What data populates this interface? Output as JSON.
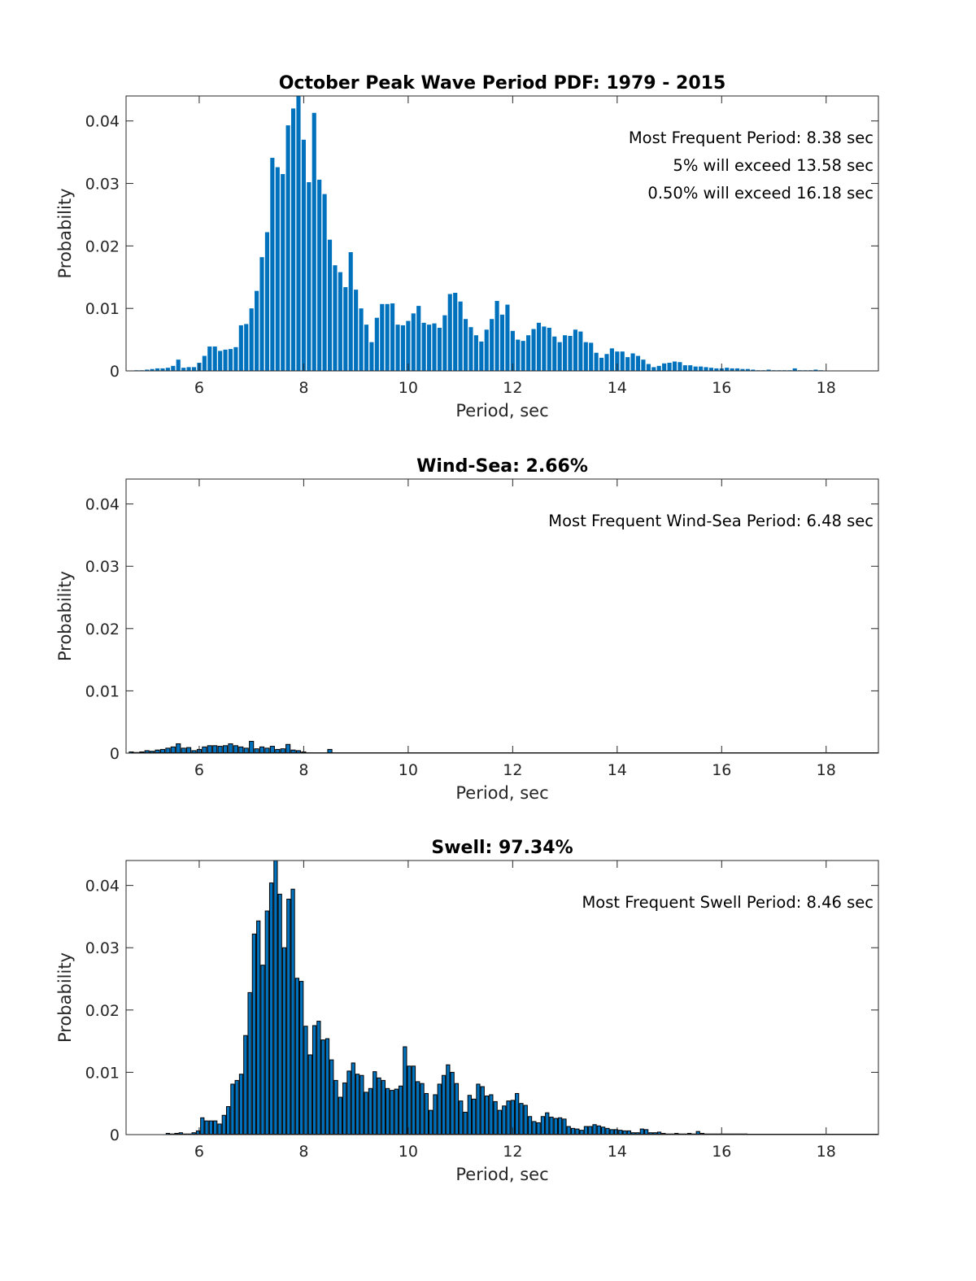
{
  "colors": {
    "bar": "#0072BD",
    "bar_edge": "#000000",
    "axis": "#262626",
    "background": "#ffffff"
  },
  "chart_data": [
    {
      "type": "bar",
      "title": "October Peak Wave Period PDF: 1979 - 2015",
      "xlabel": "Period, sec",
      "ylabel": "Probability",
      "xlim": [
        4.6,
        19.0
      ],
      "ylim": [
        0,
        0.044
      ],
      "xticks": [
        6,
        8,
        10,
        12,
        14,
        16,
        18
      ],
      "xtick_labels": [
        "6",
        "8",
        "10",
        "12",
        "14",
        "16",
        "18"
      ],
      "yticks": [
        0,
        0.01,
        0.02,
        0.03,
        0.04
      ],
      "ytick_labels": [
        "0",
        "0.01",
        "0.02",
        "0.03",
        "0.04"
      ],
      "bar_edge": false,
      "bin_start": 4.8,
      "bin_width": 0.1,
      "values": [
        0.0001,
        0.0001,
        0.0002,
        0.0003,
        0.0004,
        0.0004,
        0.0005,
        0.0008,
        0.0018,
        0.0005,
        0.0006,
        0.0006,
        0.0013,
        0.0024,
        0.0039,
        0.0039,
        0.0032,
        0.0034,
        0.0035,
        0.0038,
        0.0073,
        0.0075,
        0.01,
        0.0128,
        0.0182,
        0.0222,
        0.0341,
        0.0326,
        0.0315,
        0.0393,
        0.042,
        0.0445,
        0.037,
        0.0302,
        0.0413,
        0.0306,
        0.0283,
        0.021,
        0.0169,
        0.0158,
        0.0134,
        0.019,
        0.013,
        0.01,
        0.0074,
        0.0046,
        0.0085,
        0.0107,
        0.0107,
        0.0108,
        0.0074,
        0.0073,
        0.008,
        0.0092,
        0.0104,
        0.0077,
        0.0074,
        0.0076,
        0.0069,
        0.0089,
        0.0123,
        0.0125,
        0.0111,
        0.0083,
        0.007,
        0.0057,
        0.0047,
        0.0066,
        0.0083,
        0.0112,
        0.009,
        0.0106,
        0.0064,
        0.005,
        0.0048,
        0.0057,
        0.0067,
        0.0077,
        0.0071,
        0.0069,
        0.0055,
        0.0046,
        0.0057,
        0.0056,
        0.0066,
        0.0063,
        0.0046,
        0.0045,
        0.0029,
        0.0021,
        0.0027,
        0.0036,
        0.0031,
        0.0031,
        0.0022,
        0.0028,
        0.0024,
        0.0018,
        0.0011,
        0.0006,
        0.0008,
        0.0012,
        0.0013,
        0.0015,
        0.0014,
        0.0009,
        0.0009,
        0.0007,
        0.0007,
        0.0006,
        0.0005,
        0.0004,
        0.0004,
        0.0005,
        0.0004,
        0.0004,
        0.0003,
        0.0003,
        0.0002,
        0.0001,
        0.0001,
        0.0002,
        0.0001,
        0.0001,
        0.0001,
        0.0001,
        0.0004,
        0.0001,
        0.0001,
        0.0001,
        0.0002,
        0.0001
      ],
      "annotations": [
        "Most Frequent Period: 8.38 sec",
        "5% will exceed 13.58 sec",
        "0.50% will exceed 16.18 sec"
      ]
    },
    {
      "type": "bar",
      "title": "Wind-Sea: 2.66%",
      "xlabel": "Period, sec",
      "ylabel": "Probability",
      "xlim": [
        4.6,
        19.0
      ],
      "ylim": [
        0,
        0.044
      ],
      "xticks": [
        6,
        8,
        10,
        12,
        14,
        16,
        18
      ],
      "xtick_labels": [
        "6",
        "8",
        "10",
        "12",
        "14",
        "16",
        "18"
      ],
      "yticks": [
        0,
        0.01,
        0.02,
        0.03,
        0.04
      ],
      "ytick_labels": [
        "0",
        "0.01",
        "0.02",
        "0.03",
        "0.04"
      ],
      "bar_edge": true,
      "bin_start": 4.7,
      "bin_width": 0.1,
      "values": [
        0.0002,
        0.0001,
        0.0002,
        0.0004,
        0.0003,
        0.0005,
        0.0006,
        0.0008,
        0.001,
        0.0015,
        0.0008,
        0.0009,
        0.0004,
        0.0006,
        0.001,
        0.0012,
        0.0012,
        0.0011,
        0.0012,
        0.0015,
        0.0012,
        0.001,
        0.0008,
        0.0019,
        0.0007,
        0.001,
        0.0008,
        0.0011,
        0.0006,
        0.0007,
        0.0014,
        0.0005,
        0.0004,
        0.0002,
        0.0,
        0.0,
        0.0,
        0.0,
        0.0006
      ],
      "annotations": [
        "Most Frequent Wind-Sea Period: 6.48 sec"
      ]
    },
    {
      "type": "bar",
      "title": "Swell: 97.34%",
      "xlabel": "Period, sec",
      "ylabel": "Probability",
      "xlim": [
        4.6,
        19.0
      ],
      "ylim": [
        0,
        0.044
      ],
      "xticks": [
        6,
        8,
        10,
        12,
        14,
        16,
        18
      ],
      "xtick_labels": [
        "6",
        "8",
        "10",
        "12",
        "14",
        "16",
        "18"
      ],
      "yticks": [
        0,
        0.01,
        0.02,
        0.03,
        0.04
      ],
      "ytick_labels": [
        "0",
        "0.01",
        "0.02",
        "0.03",
        "0.04"
      ],
      "bar_edge": true,
      "bin_start": 5.4,
      "bin_width": 0.0825,
      "values": [
        0.0002,
        0.0001,
        0.0002,
        0.0003,
        0.0001,
        0.0001,
        0.0003,
        0.0006,
        0.0027,
        0.0022,
        0.0022,
        0.0022,
        0.0017,
        0.0031,
        0.0045,
        0.0081,
        0.0087,
        0.0097,
        0.0159,
        0.0228,
        0.0322,
        0.0343,
        0.0272,
        0.0359,
        0.0404,
        0.0442,
        0.0386,
        0.03,
        0.0378,
        0.0394,
        0.0251,
        0.0246,
        0.0174,
        0.0128,
        0.0175,
        0.0182,
        0.0152,
        0.0154,
        0.012,
        0.0087,
        0.006,
        0.0083,
        0.0102,
        0.0115,
        0.0097,
        0.0095,
        0.0068,
        0.0074,
        0.0101,
        0.0091,
        0.0087,
        0.0074,
        0.0071,
        0.0073,
        0.0078,
        0.0141,
        0.011,
        0.011,
        0.0085,
        0.0082,
        0.0066,
        0.0039,
        0.0064,
        0.0081,
        0.0095,
        0.0112,
        0.01,
        0.0082,
        0.0054,
        0.0036,
        0.0063,
        0.0057,
        0.0081,
        0.0077,
        0.0062,
        0.0064,
        0.0053,
        0.0039,
        0.0046,
        0.0054,
        0.0055,
        0.0066,
        0.005,
        0.0047,
        0.0029,
        0.0021,
        0.0019,
        0.0029,
        0.0035,
        0.0028,
        0.0026,
        0.0027,
        0.0025,
        0.0013,
        0.001,
        0.0009,
        0.0007,
        0.0013,
        0.0013,
        0.0016,
        0.0014,
        0.0012,
        0.001,
        0.0008,
        0.0008,
        0.0007,
        0.0006,
        0.0006,
        0.0003,
        0.0003,
        0.0009,
        0.0008,
        0.0003,
        0.0003,
        0.0004,
        0.0002,
        0.0001,
        0.0001,
        0.0002,
        0.0001,
        0.0001,
        0.0002,
        0.0001,
        0.0005,
        0.0002,
        0.0001,
        0.0001,
        0.0001,
        0.0001,
        0.0001,
        0.0001,
        0.0001,
        0.0001,
        0.0001,
        0.0001
      ],
      "annotations": [
        "Most Frequent Swell Period: 8.46 sec"
      ]
    }
  ]
}
